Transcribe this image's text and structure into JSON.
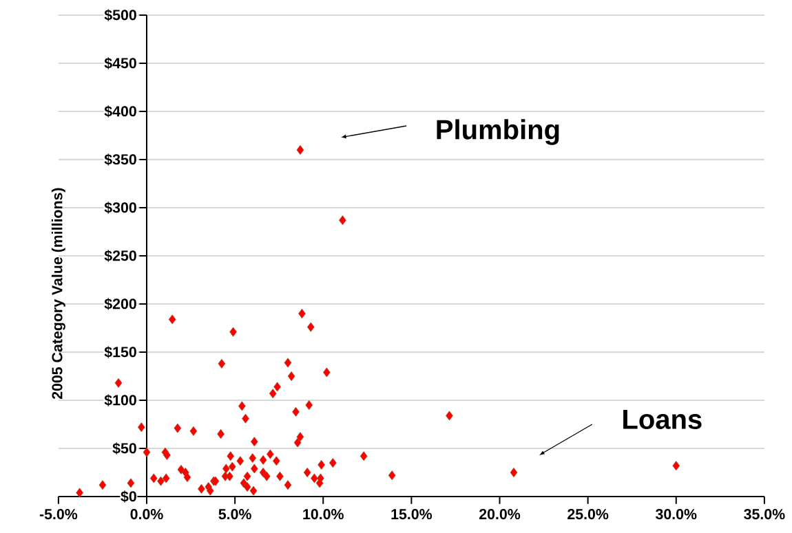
{
  "chart_data": {
    "type": "scatter",
    "ylabel": "2005 Category Value (millions)",
    "x": [
      -3.8,
      -2.5,
      -1.6,
      -0.9,
      -0.3,
      0.0,
      0.4,
      0.8,
      1.1,
      1.05,
      1.15,
      1.45,
      1.75,
      1.95,
      2.2,
      2.3,
      2.65,
      3.1,
      3.5,
      3.6,
      3.8,
      3.9,
      4.2,
      4.25,
      4.75,
      4.5,
      4.85,
      4.45,
      4.7,
      4.9,
      5.4,
      5.6,
      6.1,
      5.3,
      6.0,
      6.6,
      7.0,
      7.35,
      6.1,
      5.7,
      6.6,
      6.8,
      5.5,
      5.7,
      6.05,
      7.55,
      8.0,
      8.0,
      8.2,
      7.4,
      7.15,
      8.45,
      9.2,
      8.7,
      8.55,
      8.8,
      9.3,
      10.2,
      9.1,
      9.5,
      9.85,
      9.8,
      9.9,
      10.55,
      12.3,
      13.9,
      17.15,
      20.8,
      30.0,
      8.7,
      11.1
    ],
    "values": [
      4,
      12,
      118,
      14,
      72,
      46,
      19,
      16,
      19,
      46,
      43,
      184,
      71,
      28,
      25,
      20,
      68,
      8,
      10,
      6,
      16,
      16,
      65,
      138,
      42,
      29,
      31,
      21,
      21,
      171,
      94,
      81,
      57,
      37,
      40,
      38,
      44,
      37,
      29,
      21,
      25,
      21,
      14,
      10,
      6,
      21,
      12,
      139,
      125,
      114,
      107,
      88,
      95,
      62,
      56,
      190,
      176,
      129,
      25,
      19,
      19,
      14,
      33,
      35,
      42,
      22,
      84,
      25,
      32,
      360,
      287
    ],
    "color": "#ff0000",
    "marker": "diamond",
    "grid": "y",
    "xlim": [
      -5,
      35
    ],
    "ylim": [
      0,
      500
    ],
    "xticks": [
      {
        "value": -5,
        "label": "-5.0%"
      },
      {
        "value": 0,
        "label": "0.0%"
      },
      {
        "value": 5,
        "label": "5.0%"
      },
      {
        "value": 10,
        "label": "10.0%"
      },
      {
        "value": 15,
        "label": "15.0%"
      },
      {
        "value": 20,
        "label": "20.0%"
      },
      {
        "value": 25,
        "label": "25.0%"
      },
      {
        "value": 30,
        "label": "30.0%"
      },
      {
        "value": 35,
        "label": "35.0%"
      }
    ],
    "yticks": [
      {
        "value": 0,
        "label": "$0"
      },
      {
        "value": 50,
        "label": "$50"
      },
      {
        "value": 100,
        "label": "$100"
      },
      {
        "value": 150,
        "label": "$150"
      },
      {
        "value": 200,
        "label": "$200"
      },
      {
        "value": 250,
        "label": "$250"
      },
      {
        "value": 300,
        "label": "$300"
      },
      {
        "value": 350,
        "label": "$350"
      },
      {
        "value": 400,
        "label": "$400"
      },
      {
        "value": 450,
        "label": "$450"
      },
      {
        "value": 500,
        "label": "$500"
      }
    ],
    "annotations": [
      "Plumbing",
      "Loans"
    ]
  }
}
